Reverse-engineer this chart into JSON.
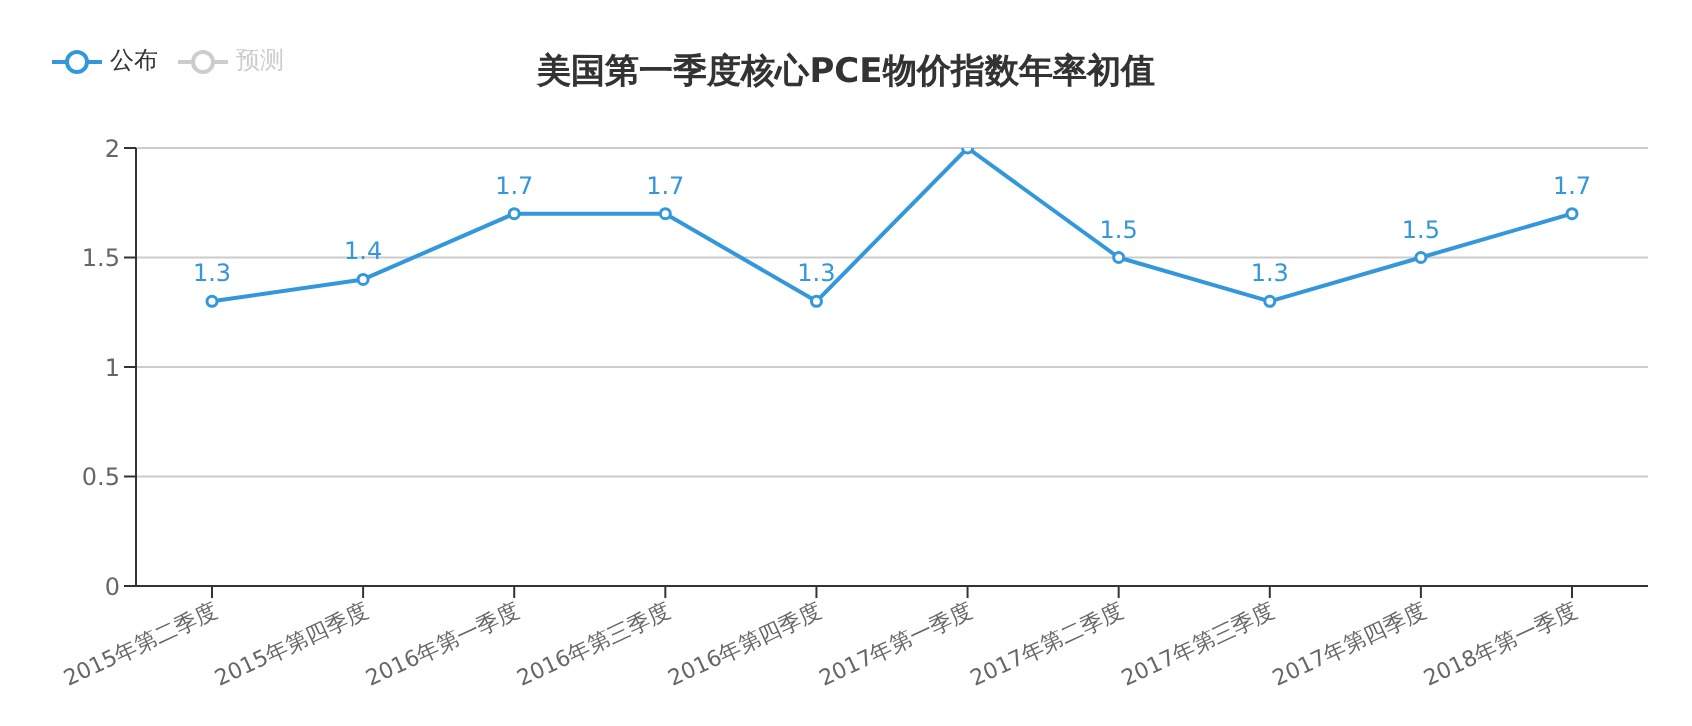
{
  "chart_data": {
    "type": "line",
    "title": "美国第一季度核心PCE物价指数年率初值",
    "categories": [
      "2015年第二季度",
      "2015年第四季度",
      "2016年第一季度",
      "2016年第三季度",
      "2016年第四季度",
      "2017年第一季度",
      "2017年第二季度",
      "2017年第三季度",
      "2017年第四季度",
      "2018年第一季度"
    ],
    "series": [
      {
        "name": "公布",
        "color": "#3398db",
        "values": [
          1.3,
          1.4,
          1.7,
          1.7,
          1.3,
          2.0,
          1.5,
          1.3,
          1.5,
          1.7
        ],
        "value_labels": [
          "1.3",
          "1.4",
          "1.7",
          "1.7",
          "1.3",
          null,
          "1.5",
          "1.3",
          "1.5",
          "1.7"
        ]
      },
      {
        "name": "预测",
        "color": "#cccccc",
        "values": [
          null,
          null,
          null,
          null,
          null,
          null,
          null,
          null,
          null,
          null
        ]
      }
    ],
    "ylim": [
      0,
      2
    ],
    "yticks": [
      0,
      0.5,
      1,
      1.5,
      2
    ],
    "grid": "y",
    "legend": "top left",
    "marker": "circle"
  }
}
